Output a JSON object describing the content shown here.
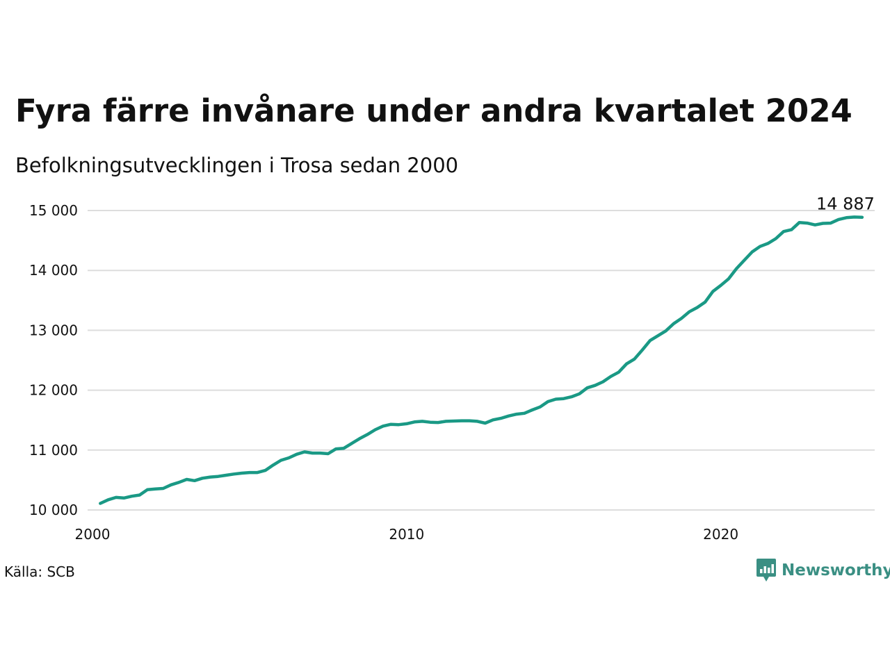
{
  "header": {
    "title": "Fyra färre invånare under andra kvartalet 2024",
    "subtitle": "Befolkningsutvecklingen i Trosa sedan 2000"
  },
  "footer": {
    "source": "Källa: SCB",
    "brand": "Newsworthy",
    "brand_icon": "newsworthy-logo-icon"
  },
  "colors": {
    "line": "#1a9985",
    "grid": "#dddddd",
    "brand": "#3a8f83"
  },
  "chart_data": {
    "type": "line",
    "title": "Fyra färre invånare under andra kvartalet 2024",
    "subtitle": "Befolkningsutvecklingen i Trosa sedan 2000",
    "xlabel": "",
    "ylabel": "",
    "x_ticks": [
      2000,
      2010,
      2020
    ],
    "x_tick_labels": [
      "2000",
      "2010",
      "2020"
    ],
    "y_ticks": [
      10000,
      11000,
      12000,
      13000,
      14000,
      15000
    ],
    "y_tick_labels": [
      "10 000",
      "11 000",
      "12 000",
      "13 000",
      "14 000",
      "15 000"
    ],
    "xlim": [
      2000,
      2024.9
    ],
    "ylim": [
      10000,
      15000
    ],
    "grid": "horizontal",
    "end_label": "14 887",
    "series": [
      {
        "values": [
          [
            2000.25,
            10110
          ],
          [
            2000.5,
            10170
          ],
          [
            2000.75,
            10210
          ],
          [
            2001.0,
            10200
          ],
          [
            2001.25,
            10230
          ],
          [
            2001.5,
            10250
          ],
          [
            2001.75,
            10340
          ],
          [
            2002.0,
            10350
          ],
          [
            2002.25,
            10360
          ],
          [
            2002.5,
            10420
          ],
          [
            2002.75,
            10460
          ],
          [
            2003.0,
            10510
          ],
          [
            2003.25,
            10490
          ],
          [
            2003.5,
            10530
          ],
          [
            2003.75,
            10550
          ],
          [
            2004.0,
            10560
          ],
          [
            2004.25,
            10580
          ],
          [
            2004.5,
            10600
          ],
          [
            2004.75,
            10615
          ],
          [
            2005.0,
            10625
          ],
          [
            2005.25,
            10625
          ],
          [
            2005.5,
            10660
          ],
          [
            2005.75,
            10750
          ],
          [
            2006.0,
            10830
          ],
          [
            2006.25,
            10870
          ],
          [
            2006.5,
            10930
          ],
          [
            2006.75,
            10970
          ],
          [
            2007.0,
            10950
          ],
          [
            2007.25,
            10950
          ],
          [
            2007.5,
            10940
          ],
          [
            2007.75,
            11020
          ],
          [
            2008.0,
            11030
          ],
          [
            2008.25,
            11110
          ],
          [
            2008.5,
            11190
          ],
          [
            2008.75,
            11260
          ],
          [
            2009.0,
            11340
          ],
          [
            2009.25,
            11400
          ],
          [
            2009.5,
            11430
          ],
          [
            2009.75,
            11425
          ],
          [
            2010.0,
            11440
          ],
          [
            2010.25,
            11470
          ],
          [
            2010.5,
            11480
          ],
          [
            2010.75,
            11465
          ],
          [
            2011.0,
            11460
          ],
          [
            2011.25,
            11480
          ],
          [
            2011.5,
            11485
          ],
          [
            2011.75,
            11490
          ],
          [
            2012.0,
            11490
          ],
          [
            2012.25,
            11480
          ],
          [
            2012.5,
            11450
          ],
          [
            2012.75,
            11505
          ],
          [
            2013.0,
            11530
          ],
          [
            2013.25,
            11570
          ],
          [
            2013.5,
            11600
          ],
          [
            2013.75,
            11615
          ],
          [
            2014.0,
            11670
          ],
          [
            2014.25,
            11720
          ],
          [
            2014.5,
            11810
          ],
          [
            2014.75,
            11850
          ],
          [
            2015.0,
            11860
          ],
          [
            2015.25,
            11890
          ],
          [
            2015.5,
            11940
          ],
          [
            2015.75,
            12040
          ],
          [
            2016.0,
            12080
          ],
          [
            2016.25,
            12140
          ],
          [
            2016.5,
            12230
          ],
          [
            2016.75,
            12300
          ],
          [
            2017.0,
            12440
          ],
          [
            2017.25,
            12520
          ],
          [
            2017.5,
            12670
          ],
          [
            2017.75,
            12830
          ],
          [
            2018.0,
            12910
          ],
          [
            2018.25,
            12990
          ],
          [
            2018.5,
            13110
          ],
          [
            2018.75,
            13200
          ],
          [
            2019.0,
            13310
          ],
          [
            2019.25,
            13380
          ],
          [
            2019.5,
            13470
          ],
          [
            2019.75,
            13650
          ],
          [
            2020.0,
            13750
          ],
          [
            2020.25,
            13860
          ],
          [
            2020.5,
            14030
          ],
          [
            2020.75,
            14170
          ],
          [
            2021.0,
            14310
          ],
          [
            2021.25,
            14400
          ],
          [
            2021.5,
            14450
          ],
          [
            2021.75,
            14530
          ],
          [
            2022.0,
            14650
          ],
          [
            2022.25,
            14680
          ],
          [
            2022.5,
            14800
          ],
          [
            2022.75,
            14790
          ],
          [
            2023.0,
            14760
          ],
          [
            2023.25,
            14785
          ],
          [
            2023.5,
            14790
          ],
          [
            2023.75,
            14850
          ],
          [
            2024.0,
            14880
          ],
          [
            2024.25,
            14891
          ],
          [
            2024.5,
            14887
          ]
        ]
      }
    ]
  }
}
